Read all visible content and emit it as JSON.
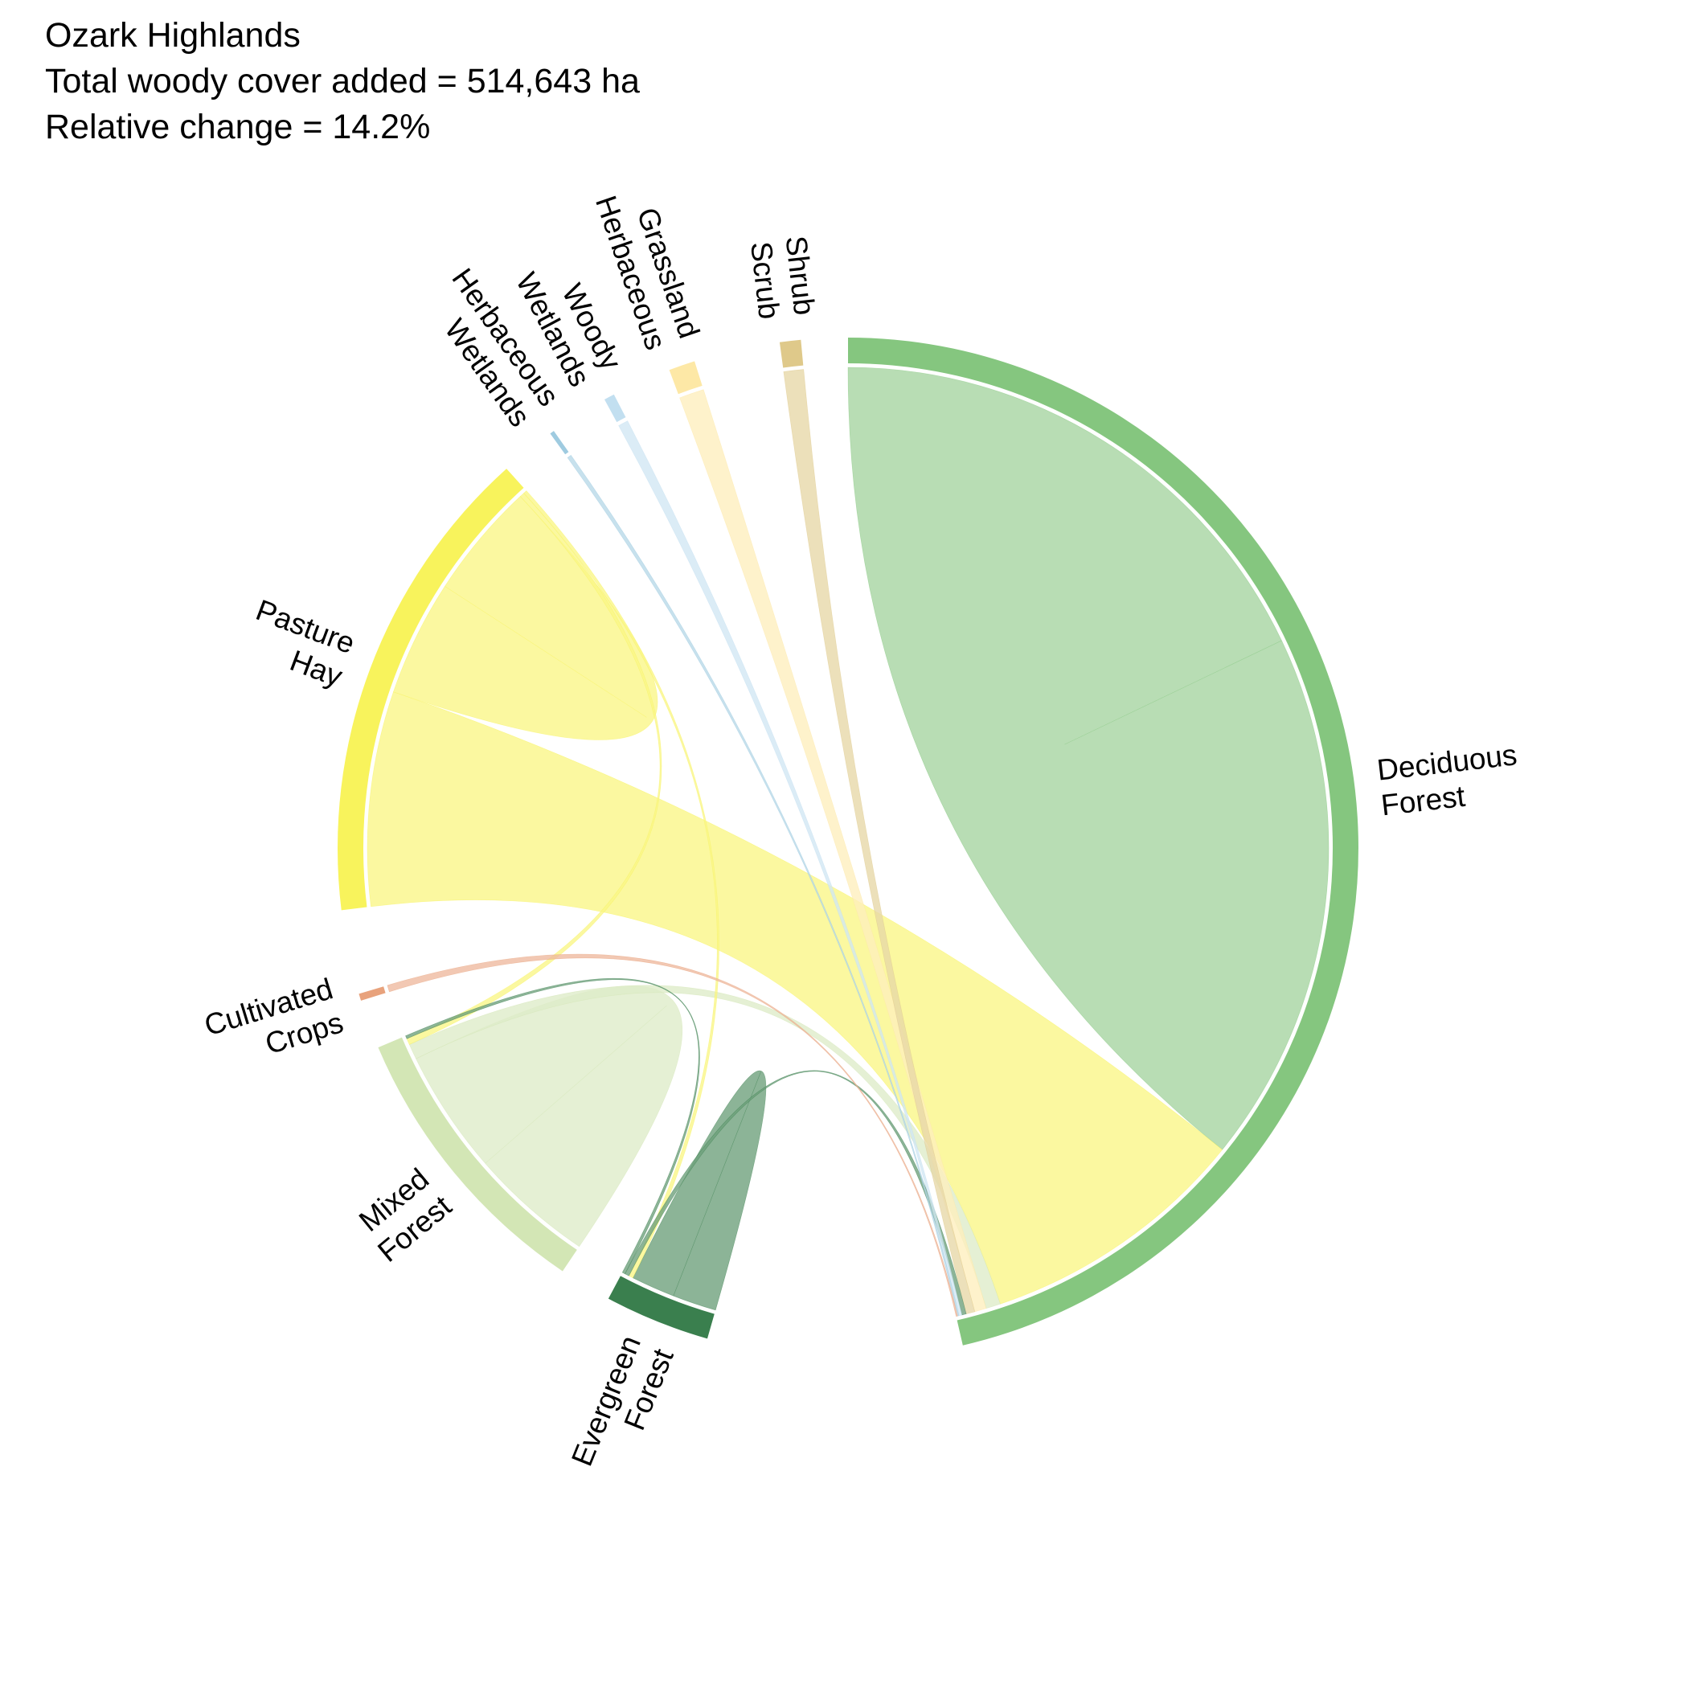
{
  "chart_data": {
    "type": "chord",
    "title_lines": [
      "Ozark Highlands",
      "Total woody cover added = 514,643 ha",
      "Relative change = 14.2%"
    ],
    "sectors": [
      {
        "id": "deciduous",
        "label_lines": [
          "Deciduous",
          "Forest"
        ],
        "color": "#85c67f",
        "start": 0,
        "end": 167
      },
      {
        "id": "evergreen",
        "label_lines": [
          "Evergreen",
          "Forest"
        ],
        "color": "#3a7f4e",
        "start": 196,
        "end": 208
      },
      {
        "id": "mixed",
        "label_lines": [
          "Mixed",
          "Forest"
        ],
        "color": "#d3e6b5",
        "start": 214,
        "end": 247
      },
      {
        "id": "crops",
        "label_lines": [
          "Cultivated",
          "Crops"
        ],
        "color": "#e8a27c",
        "start": 252.6,
        "end": 253.4
      },
      {
        "id": "pasture",
        "label_lines": [
          "Pasture",
          "Hay"
        ],
        "color": "#f8f35c",
        "start": 263,
        "end": 318
      },
      {
        "id": "herb_wet",
        "label_lines": [
          "Herbaceous",
          "Wetlands"
        ],
        "color": "#9fcbe0",
        "start": 324.3,
        "end": 324.8
      },
      {
        "id": "woody_wet",
        "label_lines": [
          "Woody",
          "Wetlands"
        ],
        "color": "#c2dff0",
        "start": 331.5,
        "end": 332.7
      },
      {
        "id": "grassland",
        "label_lines": [
          "Grassland",
          "Herbaceous"
        ],
        "color": "#fde8a6",
        "start": 339.5,
        "end": 342.5
      },
      {
        "id": "shrub",
        "label_lines": [
          "Shrub",
          "Scrub"
        ],
        "color": "#dfc98a",
        "start": 352.3,
        "end": 354.7
      }
    ],
    "flows": [
      {
        "from": "deciduous",
        "to": "deciduous",
        "value": 36.5
      },
      {
        "from": "pasture",
        "to": "deciduous",
        "value": 18.5
      },
      {
        "from": "pasture",
        "to": "pasture",
        "value": 10.0
      },
      {
        "from": "mixed",
        "to": "mixed",
        "value": 8.0
      },
      {
        "from": "evergreen",
        "to": "evergreen",
        "value": 3.0
      },
      {
        "from": "mixed",
        "to": "deciduous",
        "value": 1.0
      },
      {
        "from": "grassland",
        "to": "deciduous",
        "value": 0.8
      },
      {
        "from": "shrub",
        "to": "deciduous",
        "value": 0.6
      },
      {
        "from": "pasture",
        "to": "mixed",
        "value": 0.4
      },
      {
        "from": "pasture",
        "to": "evergreen",
        "value": 0.3
      },
      {
        "from": "evergreen",
        "to": "deciduous",
        "value": 0.3
      },
      {
        "from": "woody_wet",
        "to": "deciduous",
        "value": 0.2
      },
      {
        "from": "evergreen",
        "to": "mixed",
        "value": 0.2
      },
      {
        "from": "herb_wet",
        "to": "deciduous",
        "value": 0.1
      },
      {
        "from": "crops",
        "to": "deciduous",
        "value": 0.1
      }
    ]
  }
}
